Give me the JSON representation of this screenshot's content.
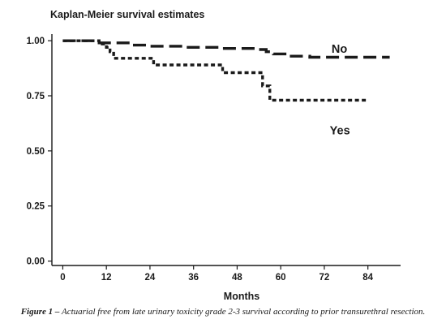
{
  "chart_data": {
    "type": "line",
    "title": "Kaplan-Meier survival estimates",
    "xlabel": "Months",
    "ylabel": "",
    "xlim": [
      -3,
      93
    ],
    "ylim": [
      -0.02,
      1.03
    ],
    "xticks": [
      0,
      12,
      24,
      36,
      48,
      60,
      72,
      84
    ],
    "xtick_labels": [
      "0",
      "12",
      "24",
      "36",
      "48",
      "60",
      "72",
      "84"
    ],
    "yticks": [
      0,
      0.25,
      0.5,
      0.75,
      1
    ],
    "ytick_labels": [
      "0.00",
      "0.25",
      "0.50",
      "0.75",
      "1.00"
    ],
    "grid": false,
    "legend": "none",
    "series": [
      {
        "name": "No",
        "step": true,
        "x": [
          0,
          9,
          10,
          13,
          18,
          24,
          34,
          44,
          53,
          56,
          58,
          62,
          68,
          90
        ],
        "y": [
          1.0,
          1.0,
          0.99,
          0.99,
          0.98,
          0.975,
          0.97,
          0.965,
          0.96,
          0.95,
          0.94,
          0.93,
          0.925,
          0.925
        ]
      },
      {
        "name": "Yes",
        "step": true,
        "x": [
          0,
          10,
          12,
          13,
          14,
          25,
          44,
          55,
          57,
          84
        ],
        "y": [
          1.0,
          0.985,
          0.97,
          0.95,
          0.92,
          0.89,
          0.855,
          0.795,
          0.73,
          0.73
        ]
      }
    ],
    "annotations": [
      {
        "text": "No",
        "x": 74,
        "y": 0.945
      },
      {
        "text": "Yes",
        "x": 73.5,
        "y": 0.575
      }
    ]
  },
  "caption": {
    "label": "Figure 1 –",
    "text": "Actuarial free from late urinary toxicity grade 2-3 survival according to prior transurethral resection."
  }
}
